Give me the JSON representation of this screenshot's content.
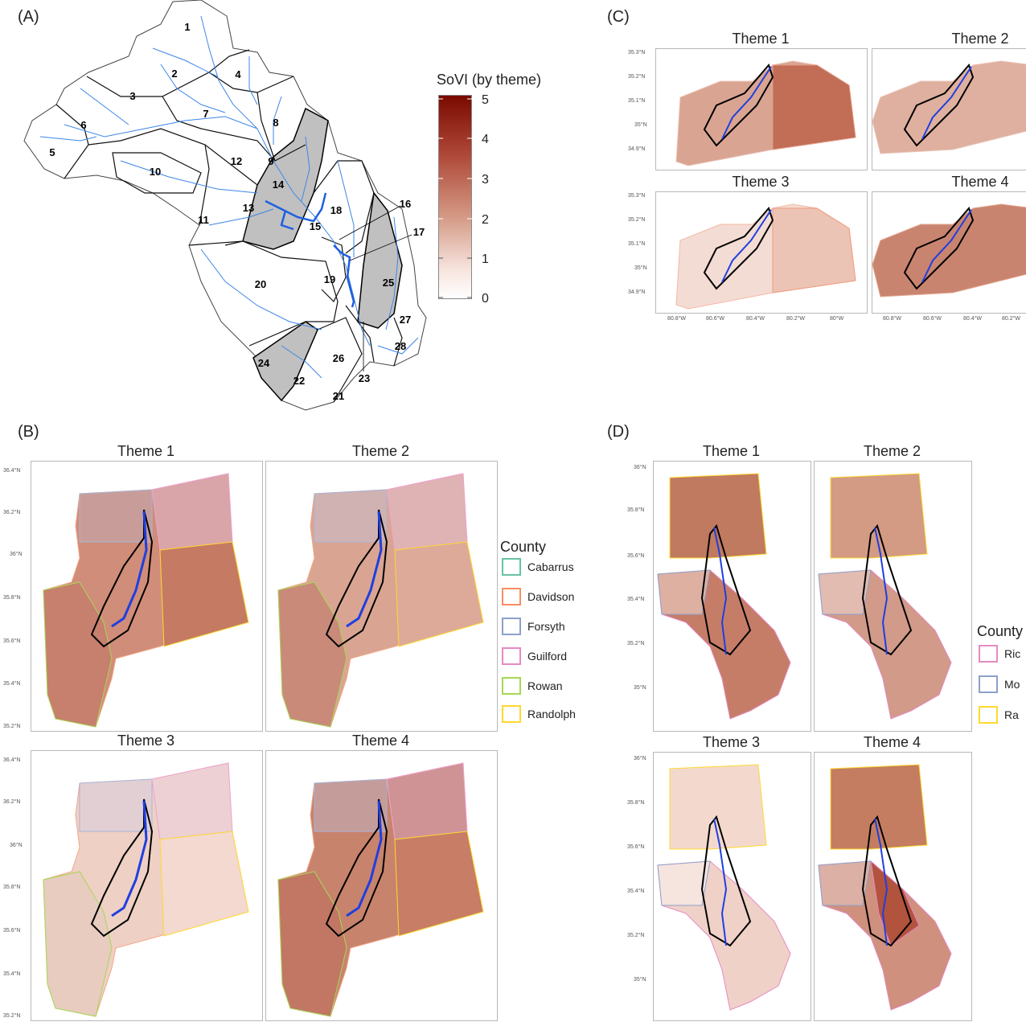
{
  "panels": {
    "A": {
      "label": "(A)",
      "watershed_numbers": [
        "1",
        "2",
        "3",
        "4",
        "5",
        "6",
        "7",
        "8",
        "9",
        "10",
        "11",
        "12",
        "13",
        "14",
        "15",
        "16",
        "17",
        "18",
        "19",
        "20",
        "21",
        "22",
        "23",
        "24",
        "25",
        "26",
        "27",
        "28"
      ],
      "legend": {
        "title": "SoVI (by theme)",
        "ticks": [
          "5",
          "4",
          "3",
          "2",
          "1",
          "0"
        ],
        "range": [
          0,
          5
        ],
        "color_low": "#ffffff",
        "color_high": "#7a0a00"
      }
    },
    "B": {
      "label": "(B)",
      "themes": [
        "Theme 1",
        "Theme 2",
        "Theme 3",
        "Theme 4"
      ],
      "lat_ticks": [
        "36.4°N",
        "36.2°N",
        "36°N",
        "35.8°N",
        "35.6°N",
        "35.4°N",
        "35.2°N"
      ],
      "legend": {
        "title": "County",
        "items": [
          {
            "name": "Cabarrus",
            "color": "#66c2a5"
          },
          {
            "name": "Davidson",
            "color": "#fc8d62"
          },
          {
            "name": "Forsyth",
            "color": "#8da0cb"
          },
          {
            "name": "Guilford",
            "color": "#e78ac3"
          },
          {
            "name": "Rowan",
            "color": "#a6d854"
          },
          {
            "name": "Randolph",
            "color": "#ffd92f"
          }
        ]
      }
    },
    "C": {
      "label": "(C)",
      "themes": [
        "Theme 1",
        "Theme 2",
        "Theme 3",
        "Theme 4"
      ],
      "lat_ticks": [
        "35.3°N",
        "35.2°N",
        "35.1°N",
        "35°N",
        "34.9°N"
      ],
      "lon_ticks": [
        "80.8°W",
        "80.6°W",
        "80.4°W",
        "80.2°W",
        "80°W"
      ]
    },
    "D": {
      "label": "(D)",
      "themes": [
        "Theme 1",
        "Theme 2",
        "Theme 3",
        "Theme 4"
      ],
      "lat_ticks": [
        "36°N",
        "35.8°N",
        "35.6°N",
        "35.4°N",
        "35.2°N",
        "35°N"
      ],
      "legend": {
        "title": "County",
        "items": [
          {
            "name": "Ric",
            "color": "#e78ac3"
          },
          {
            "name": "Mo",
            "color": "#8da0cb"
          },
          {
            "name": "Ra",
            "color": "#ffd92f"
          }
        ]
      }
    }
  },
  "colors": {
    "river": "#1f5fe0",
    "river_light": "#4a90e2",
    "outline": "#000000",
    "highlight_gray": "#c0c0c0",
    "sovi_light": "#f3dcd3",
    "sovi_mid": "#d49a85",
    "sovi_dark": "#b3553f"
  }
}
